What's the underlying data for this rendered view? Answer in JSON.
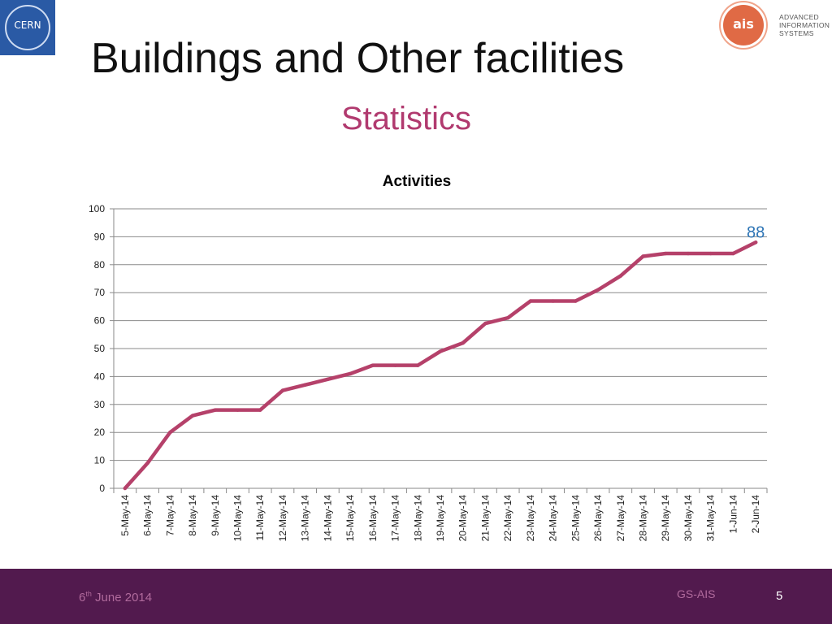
{
  "header": {
    "cern_logo_text": "CERN",
    "ais_logo_text": "ais",
    "ais_words": [
      "ADVANCED",
      "INFORMATION",
      "SYSTEMS"
    ],
    "title": "Buildings and Other facilities",
    "subtitle": "Statistics"
  },
  "colors": {
    "line": "#b5416a",
    "last_label": "#2e75b6",
    "subtitle": "#b13a6f",
    "footer": "#521a4e"
  },
  "chart_data": {
    "type": "line",
    "title": "Activities",
    "xlabel": "",
    "ylabel": "",
    "ylim": [
      0,
      100
    ],
    "yticks": [
      0,
      10,
      20,
      30,
      40,
      50,
      60,
      70,
      80,
      90,
      100
    ],
    "grid": true,
    "categories": [
      "5-May-14",
      "6-May-14",
      "7-May-14",
      "8-May-14",
      "9-May-14",
      "10-May-14",
      "11-May-14",
      "12-May-14",
      "13-May-14",
      "14-May-14",
      "15-May-14",
      "16-May-14",
      "17-May-14",
      "18-May-14",
      "19-May-14",
      "20-May-14",
      "21-May-14",
      "22-May-14",
      "23-May-14",
      "24-May-14",
      "25-May-14",
      "26-May-14",
      "27-May-14",
      "28-May-14",
      "29-May-14",
      "30-May-14",
      "31-May-14",
      "1-Jun-14",
      "2-Jun-14"
    ],
    "series": [
      {
        "values": [
          0,
          9,
          20,
          26,
          28,
          28,
          28,
          35,
          37,
          39,
          41,
          44,
          44,
          44,
          49,
          52,
          59,
          61,
          67,
          67,
          67,
          71,
          76,
          83,
          84,
          84,
          84,
          84,
          88
        ]
      }
    ],
    "data_labels": [
      {
        "category": "2-Jun-14",
        "text": "88"
      }
    ]
  },
  "footer": {
    "date_day": "6",
    "date_suffix": "th",
    "date_rest": " June 2014",
    "org": "GS-AIS",
    "page": "5"
  }
}
